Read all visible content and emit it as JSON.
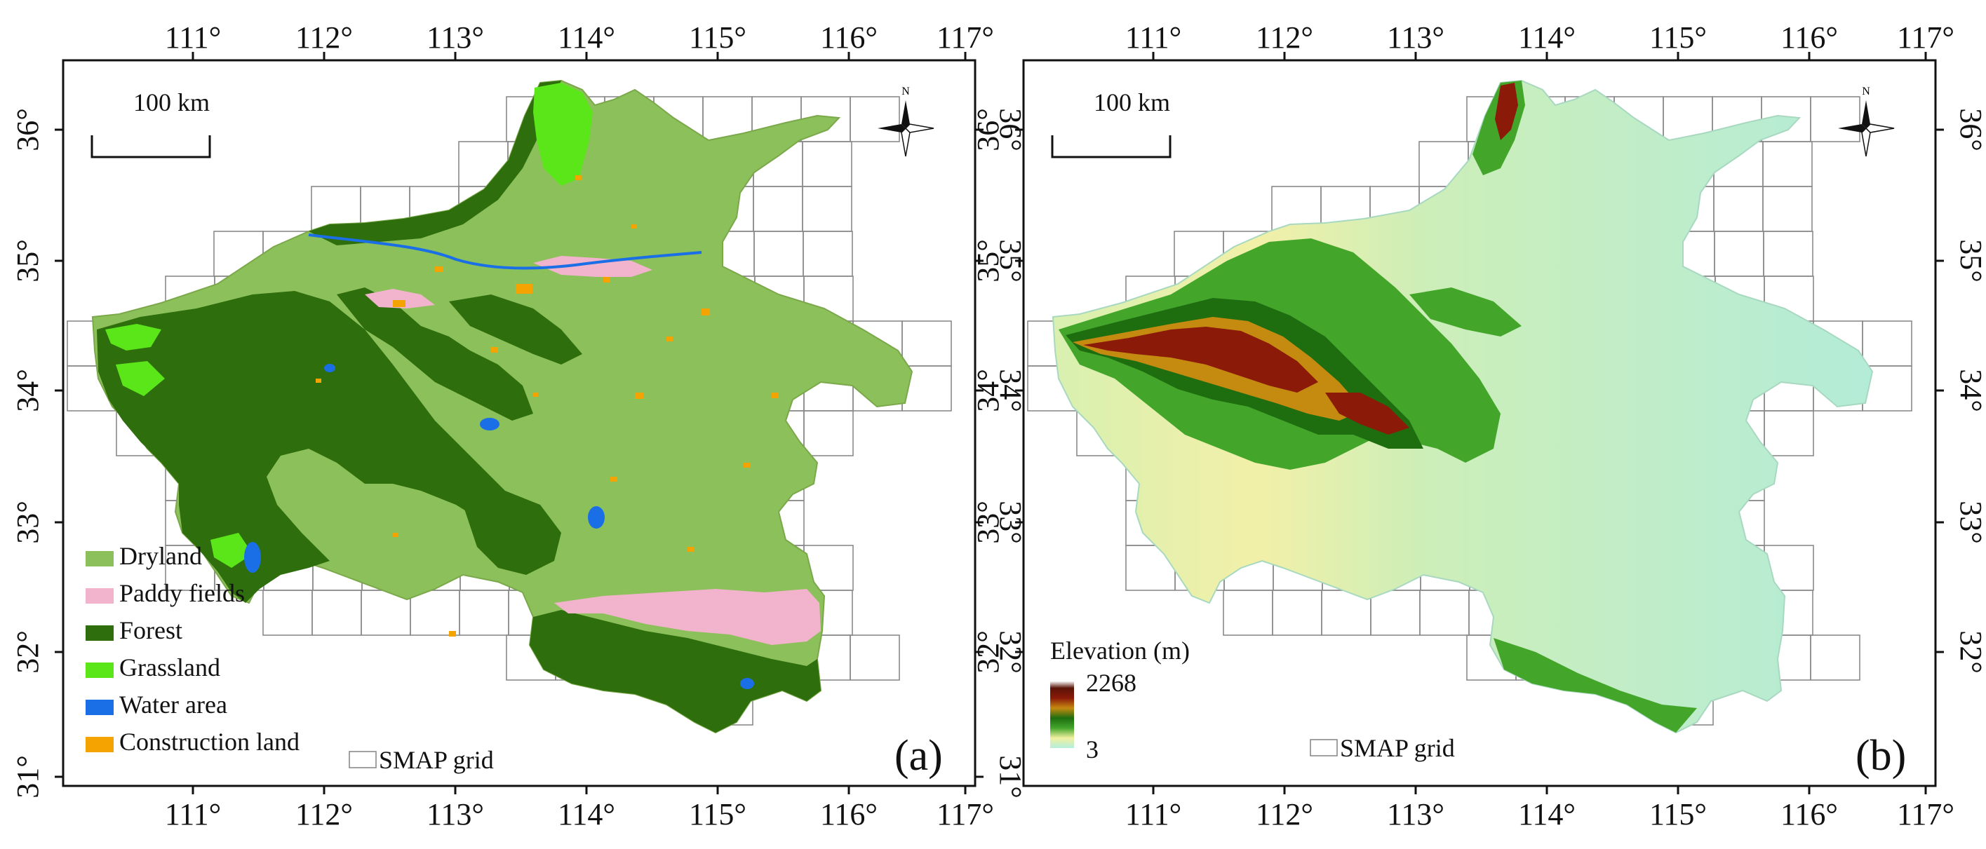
{
  "panels": [
    {
      "id": "a",
      "label": "(a)",
      "scalebar": "100 km",
      "north": "N",
      "lon_ticks": [
        "111°",
        "112°",
        "113°",
        "114°",
        "115°",
        "116°",
        "117°"
      ],
      "lat_ticks": [
        "31°",
        "32°",
        "33°",
        "34°",
        "35°",
        "36°"
      ],
      "legend": [
        {
          "label": "Dryland",
          "color": "#8cc05a"
        },
        {
          "label": "Paddy fields",
          "color": "#f2b3cc"
        },
        {
          "label": "Forest",
          "color": "#2e6e0c"
        },
        {
          "label": "Grassland",
          "color": "#5be61a"
        },
        {
          "label": "Water area",
          "color": "#1a6ee6"
        },
        {
          "label": "Construction land",
          "color": "#f5a300"
        }
      ],
      "grid_legend": "SMAP grid"
    },
    {
      "id": "b",
      "label": "(b)",
      "scalebar": "100 km",
      "north": "N",
      "lon_ticks": [
        "111°",
        "112°",
        "113°",
        "114°",
        "115°",
        "116°",
        "117°"
      ],
      "lat_ticks": [
        "32°",
        "33°",
        "34°",
        "35°",
        "36°"
      ],
      "elevation": {
        "title": "Elevation (m)",
        "max_label": "2268",
        "min_label": "3",
        "max": 2268,
        "min": 3,
        "colors": [
          "#b3efdc",
          "#d5f0b0",
          "#f2f0a0",
          "#43a62b",
          "#1e6e10",
          "#c58a10",
          "#8b1a08",
          "#5a1408",
          "#ffffff"
        ]
      },
      "grid_legend": "SMAP grid"
    }
  ]
}
